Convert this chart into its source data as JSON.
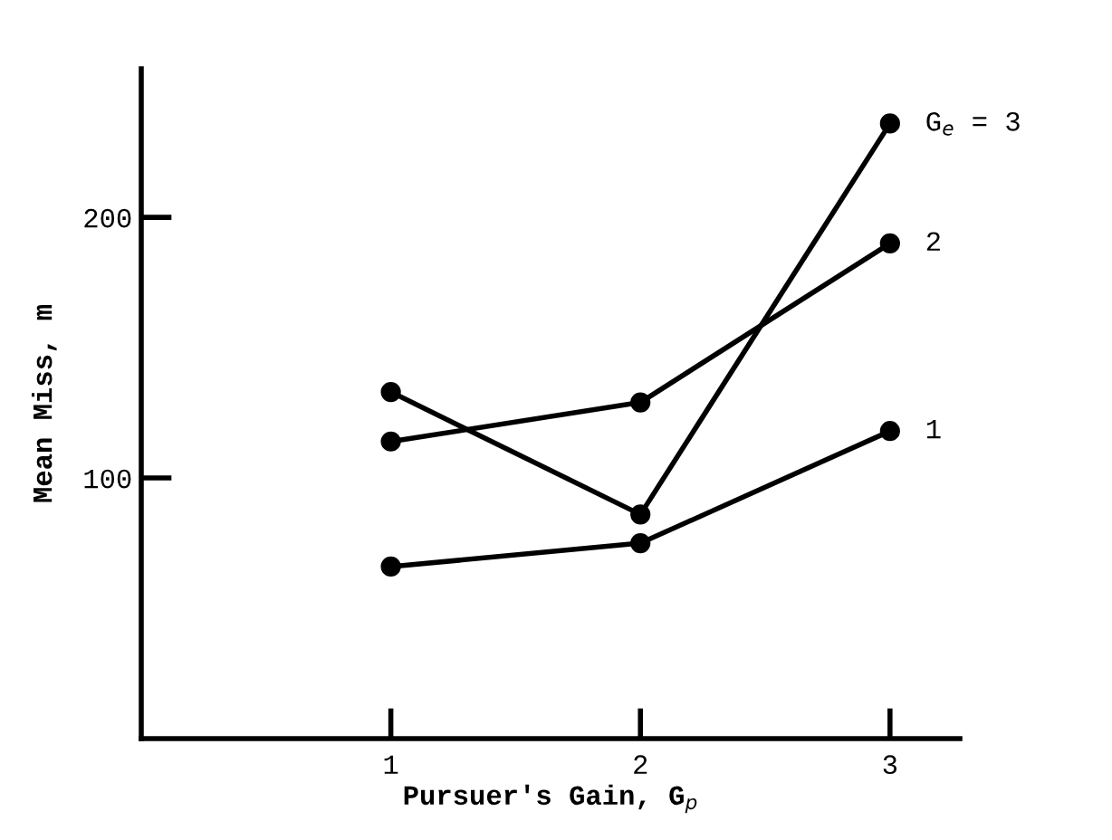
{
  "chart_data": {
    "type": "line",
    "xlabel": "Pursuer's Gain, G$_{p}$",
    "ylabel": "Mean Miss, m",
    "x": [
      1,
      2,
      3
    ],
    "xlim": [
      0,
      3.28
    ],
    "xticks": [
      1,
      2,
      3
    ],
    "ylim": [
      0,
      257
    ],
    "yticks": [
      100,
      200
    ],
    "marker": "circle",
    "line_style": "solid",
    "grid": false,
    "legend": false,
    "series": [
      {
        "name": "G$_{e}$ = 3",
        "color": "#000000",
        "values": [
          133,
          86,
          236
        ]
      },
      {
        "name": "2",
        "color": "#000000",
        "values": [
          114,
          129,
          190
        ]
      },
      {
        "name": "1",
        "color": "#000000",
        "values": [
          66,
          75,
          118
        ]
      }
    ]
  }
}
